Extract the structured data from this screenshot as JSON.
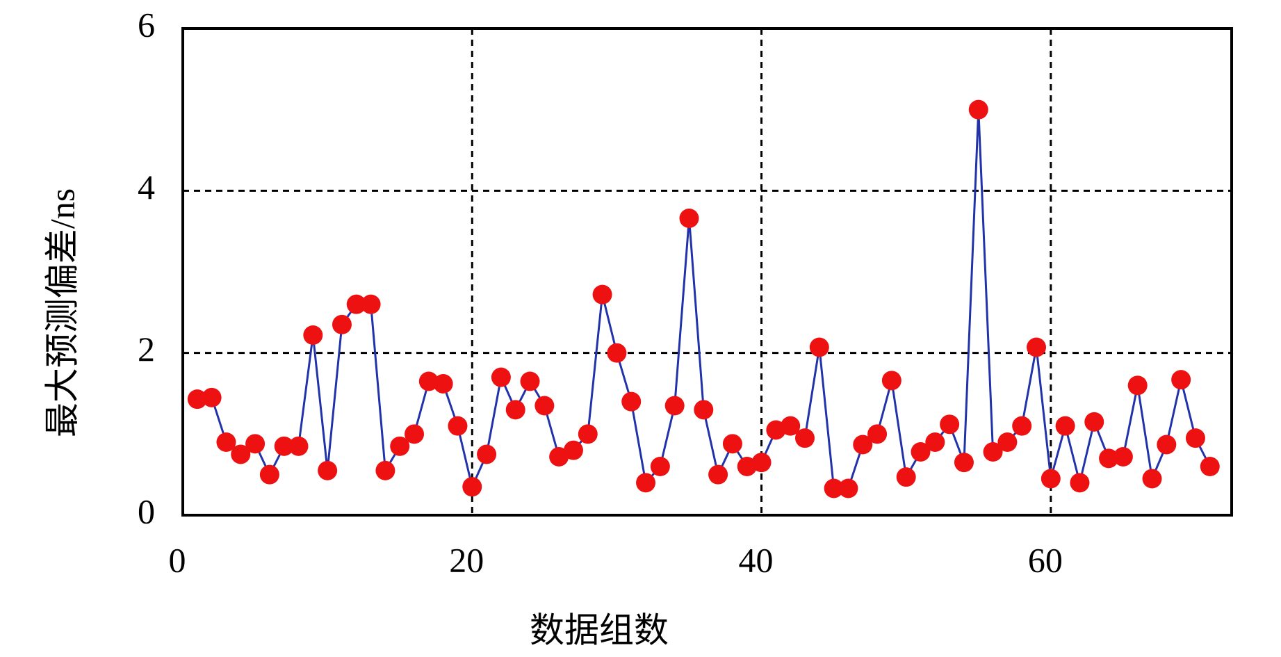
{
  "chart_data": {
    "type": "line",
    "xlabel": "数据组数",
    "ylabel": "最大预测偏差/ns",
    "x": [
      1,
      2,
      3,
      4,
      5,
      6,
      7,
      8,
      9,
      10,
      11,
      12,
      13,
      14,
      15,
      16,
      17,
      18,
      19,
      20,
      21,
      22,
      23,
      24,
      25,
      26,
      27,
      28,
      29,
      30,
      31,
      32,
      33,
      34,
      35,
      36,
      37,
      38,
      39,
      40,
      41,
      42,
      43,
      44,
      45,
      46,
      47,
      48,
      49,
      50,
      51,
      52,
      53,
      54,
      55,
      56,
      57,
      58,
      59,
      60,
      61,
      62,
      63,
      64,
      65,
      66,
      67,
      68,
      69,
      70,
      71
    ],
    "series": [
      {
        "name": "最大预测偏差",
        "color": "#2233aa",
        "marker_color": "#ee1111",
        "values": [
          1.43,
          1.45,
          0.9,
          0.75,
          0.88,
          0.5,
          0.85,
          0.85,
          2.22,
          0.55,
          2.35,
          2.6,
          2.6,
          0.55,
          0.85,
          1.0,
          1.65,
          1.62,
          1.1,
          0.35,
          0.75,
          1.7,
          1.3,
          1.65,
          1.35,
          0.72,
          0.8,
          1.0,
          2.72,
          2.0,
          1.4,
          0.4,
          0.6,
          1.35,
          3.66,
          1.3,
          0.5,
          0.88,
          0.6,
          0.65,
          1.05,
          1.1,
          0.95,
          2.07,
          0.33,
          0.33,
          0.87,
          1.0,
          1.66,
          0.47,
          0.78,
          0.9,
          1.12,
          0.65,
          5.0,
          0.78,
          0.9,
          1.1,
          2.07,
          0.45,
          1.1,
          0.4,
          1.15,
          0.7,
          0.72,
          1.6,
          0.45,
          0.87,
          1.67,
          0.95,
          0.6
        ]
      }
    ],
    "xlim": [
      0,
      72.5
    ],
    "xticks": [
      0,
      20,
      40,
      60
    ],
    "ylim": [
      0,
      6
    ],
    "yticks": [
      0,
      2,
      4,
      6
    ],
    "grid": true
  }
}
